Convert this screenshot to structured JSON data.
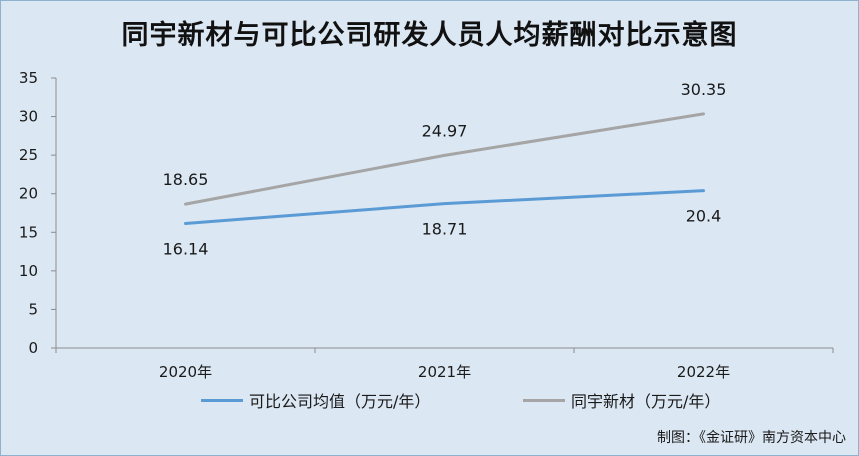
{
  "title": "同宇新材与可比公司研发人员人均薪酬对比示意图",
  "source": "制图：《金证研》南方资本中心",
  "colors": {
    "background": "#dbe7f3",
    "blue_series": "#5b9bd5",
    "gray_series": "#a5a5a5"
  },
  "chart_data": {
    "type": "line",
    "title": "同宇新材与可比公司研发人员人均薪酬对比示意图",
    "categories": [
      "2020年",
      "2021年",
      "2022年"
    ],
    "ylim": [
      0,
      35
    ],
    "yticks": [
      0,
      5,
      10,
      15,
      20,
      25,
      30,
      35
    ],
    "grid": false,
    "legend": "bottom",
    "series": [
      {
        "name": "可比公司均值（万元/年）",
        "values": [
          16.14,
          18.71,
          20.4
        ],
        "labels": [
          "16.14",
          "18.71",
          "20.4"
        ],
        "label_position": "below",
        "color": "#5b9bd5"
      },
      {
        "name": "同宇新材（万元/年）",
        "values": [
          18.65,
          24.97,
          30.35
        ],
        "labels": [
          "18.65",
          "24.97",
          "30.35"
        ],
        "label_position": "above",
        "color": "#a5a5a5"
      }
    ]
  }
}
